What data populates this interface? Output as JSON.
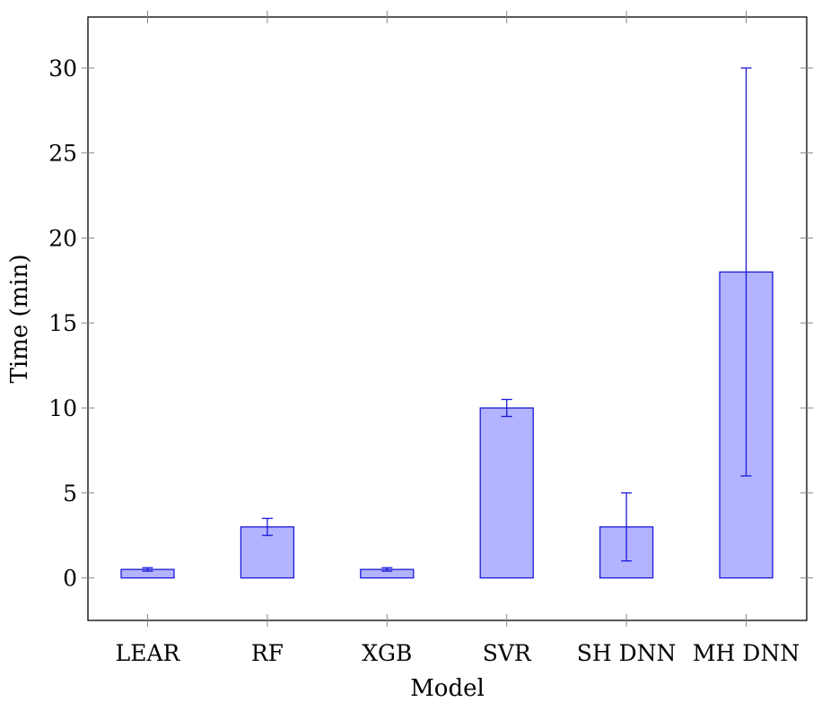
{
  "chart_data": {
    "type": "bar",
    "xlabel": "Model",
    "ylabel": "Time (min)",
    "categories": [
      "LEAR",
      "RF",
      "XGB",
      "SVR",
      "SH DNN",
      "MH DNN"
    ],
    "values": [
      0.5,
      3,
      0.5,
      10,
      3,
      18
    ],
    "error_low": [
      0.4,
      2.5,
      0.4,
      9.5,
      1,
      6
    ],
    "error_high": [
      0.6,
      3.5,
      0.6,
      10.5,
      5,
      30
    ],
    "ylim": [
      -2.5,
      33
    ],
    "yticks": [
      0,
      5,
      10,
      15,
      20,
      25,
      30
    ],
    "grid": false,
    "colors": {
      "bar_fill": "#b3b3ff",
      "bar_stroke": "#1a1ad9",
      "axis": "#000000"
    }
  }
}
